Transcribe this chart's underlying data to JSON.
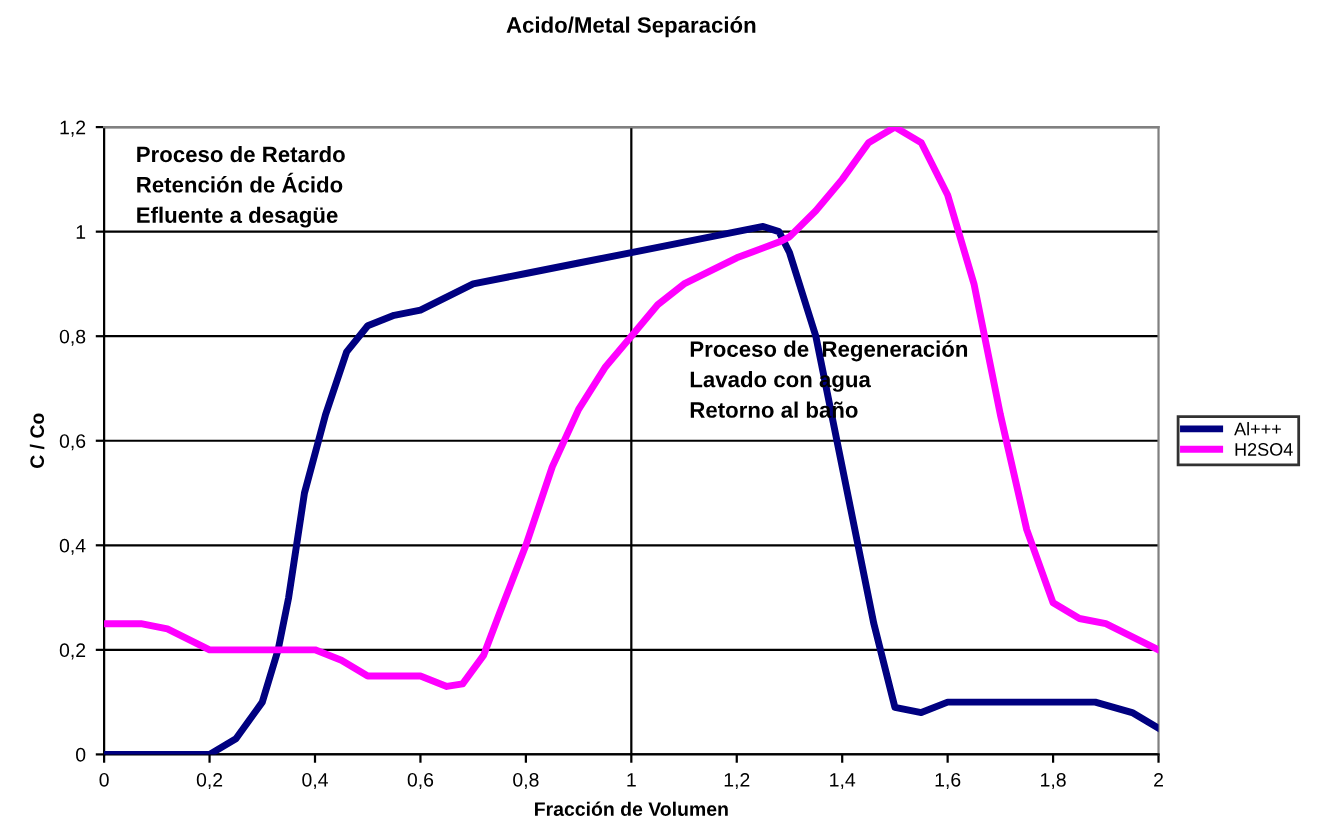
{
  "chart_data": {
    "type": "line",
    "title": "Acido/Metal Separación",
    "xlabel": "Fracción de Volumen",
    "ylabel": "C / Co",
    "xlim": [
      0,
      2
    ],
    "ylim": [
      0,
      1.2
    ],
    "xticks": [
      0,
      {
        "value": 0.2,
        "label": "0,2"
      },
      {
        "value": 0.4,
        "label": "0,4"
      },
      {
        "value": 0.6,
        "label": "0,6"
      },
      {
        "value": 0.8,
        "label": "0,8"
      },
      1,
      {
        "value": 1.2,
        "label": "1,2"
      },
      {
        "value": 1.4,
        "label": "1,4"
      },
      {
        "value": 1.6,
        "label": "1,6"
      },
      {
        "value": 1.8,
        "label": "1,8"
      },
      2
    ],
    "yticks": [
      0,
      {
        "value": 0.2,
        "label": "0,2"
      },
      {
        "value": 0.4,
        "label": "0,4"
      },
      {
        "value": 0.6,
        "label": "0,6"
      },
      {
        "value": 0.8,
        "label": "0,8"
      },
      1,
      {
        "value": 1.2,
        "label": "1,2"
      }
    ],
    "grid": "y",
    "legend": "right",
    "marker": "none",
    "line_style": "solid",
    "ref_lines": [
      {
        "axis": "x",
        "value": 1,
        "label": null,
        "color": "#000000"
      }
    ],
    "annotations": [
      "Proceso de Retardo\nRetención de Ácido\nEfluente a desagüe",
      "Proceso de  Regeneración\nLavado con agua\nRetorno al baño"
    ],
    "series": [
      {
        "name": "Al+++",
        "color": "#000080",
        "x": [
          0,
          0.1,
          0.2,
          0.25,
          0.3,
          0.33,
          0.35,
          0.38,
          0.42,
          0.46,
          0.5,
          0.55,
          0.6,
          0.7,
          0.8,
          0.9,
          1.0,
          1.1,
          1.2,
          1.25,
          1.28,
          1.3,
          1.35,
          1.38,
          1.42,
          1.46,
          1.5,
          1.55,
          1.6,
          1.8,
          1.88,
          1.95,
          2.0
        ],
        "values": [
          0,
          0,
          0,
          0.03,
          0.1,
          0.2,
          0.3,
          0.5,
          0.65,
          0.77,
          0.82,
          0.84,
          0.85,
          0.9,
          0.92,
          0.94,
          0.96,
          0.98,
          1.0,
          1.01,
          1.0,
          0.96,
          0.8,
          0.65,
          0.45,
          0.25,
          0.09,
          0.08,
          0.1,
          0.1,
          0.1,
          0.08,
          0.05
        ]
      },
      {
        "name": "H2SO4",
        "color": "#ff00ff",
        "x": [
          0,
          0.07,
          0.12,
          0.2,
          0.3,
          0.36,
          0.4,
          0.45,
          0.5,
          0.55,
          0.6,
          0.65,
          0.68,
          0.72,
          0.75,
          0.8,
          0.85,
          0.9,
          0.95,
          1.0,
          1.05,
          1.1,
          1.2,
          1.28,
          1.3,
          1.35,
          1.4,
          1.45,
          1.5,
          1.55,
          1.6,
          1.65,
          1.7,
          1.75,
          1.8,
          1.85,
          1.9,
          2.0
        ],
        "values": [
          0.25,
          0.25,
          0.24,
          0.2,
          0.2,
          0.2,
          0.2,
          0.18,
          0.15,
          0.15,
          0.15,
          0.13,
          0.135,
          0.19,
          0.27,
          0.4,
          0.55,
          0.66,
          0.74,
          0.8,
          0.86,
          0.9,
          0.95,
          0.98,
          0.99,
          1.04,
          1.1,
          1.17,
          1.2,
          1.17,
          1.07,
          0.9,
          0.65,
          0.43,
          0.29,
          0.26,
          0.25,
          0.2
        ]
      }
    ]
  }
}
